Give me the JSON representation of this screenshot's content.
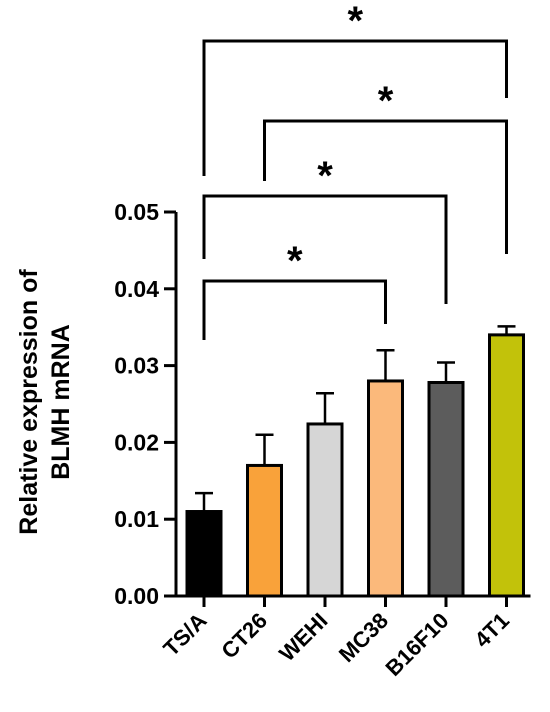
{
  "chart_data": {
    "type": "bar",
    "title": "",
    "xlabel": "",
    "ylabel_lines": [
      "Relative expression of",
      "BLMH mRNA"
    ],
    "ylim": [
      0,
      0.05
    ],
    "yticks": [
      "0.00",
      "0.01",
      "0.02",
      "0.03",
      "0.04",
      "0.05"
    ],
    "grid": false,
    "categories": [
      "TS/A",
      "CT26",
      "WEHI",
      "MC38",
      "B16F10",
      "4T1"
    ],
    "values": [
      0.011,
      0.017,
      0.0224,
      0.028,
      0.0278,
      0.034
    ],
    "errors": [
      0.0024,
      0.004,
      0.004,
      0.004,
      0.0026,
      0.0011
    ],
    "colors": [
      "#000000",
      "#f9a23a",
      "#d6d6d6",
      "#fbb97b",
      "#5c5c5c",
      "#c2c20a"
    ],
    "significance": [
      {
        "from": 0,
        "to": 3,
        "label": "*"
      },
      {
        "from": 0,
        "to": 4,
        "label": "*"
      },
      {
        "from": 1,
        "to": 5,
        "label": "*"
      },
      {
        "from": 0,
        "to": 5,
        "label": "*"
      }
    ]
  }
}
